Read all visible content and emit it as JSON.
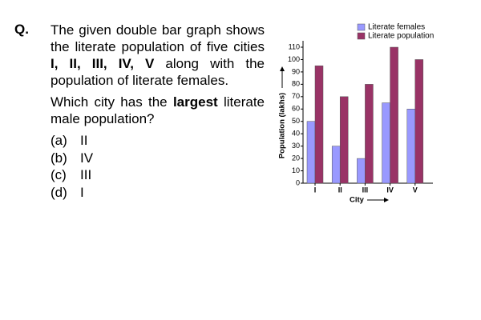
{
  "question": {
    "label": "Q.",
    "paragraphs": [
      {
        "lines": [
          [
            {
              "text": "The given double bar graph shows",
              "bold": false
            }
          ],
          [
            {
              "text": "the literate population of five cities",
              "bold": false
            }
          ],
          [
            {
              "text": "I, II, III, IV, V",
              "bold": true
            },
            {
              "text": " along with the",
              "bold": false
            }
          ],
          [
            {
              "text": "population of literate females.",
              "bold": false
            }
          ]
        ]
      },
      {
        "lines": [
          [
            {
              "text": "Which city has the ",
              "bold": false
            },
            {
              "text": "largest",
              "bold": true
            },
            {
              "text": " literate",
              "bold": false
            }
          ],
          [
            {
              "text": "male population?",
              "bold": false
            }
          ]
        ]
      }
    ],
    "options": [
      {
        "label": "(a)",
        "text": "II"
      },
      {
        "label": "(b)",
        "text": "IV"
      },
      {
        "label": "(c)",
        "text": "III"
      },
      {
        "label": "(d)",
        "text": "I"
      }
    ]
  },
  "chart_data": {
    "type": "bar",
    "x_label": "City",
    "y_label": "Population (lakhs)",
    "categories": [
      "I",
      "II",
      "III",
      "IV",
      "V"
    ],
    "series": [
      {
        "name": "Literate females",
        "color": "#9999ff",
        "values": [
          50,
          30,
          20,
          65,
          60
        ]
      },
      {
        "name": "Literate population",
        "color": "#993366",
        "values": [
          95,
          70,
          80,
          110,
          100
        ]
      }
    ],
    "ylim": [
      0,
      110
    ],
    "yticks": [
      0,
      10,
      20,
      30,
      40,
      50,
      60,
      70,
      80,
      90,
      100,
      110
    ]
  }
}
